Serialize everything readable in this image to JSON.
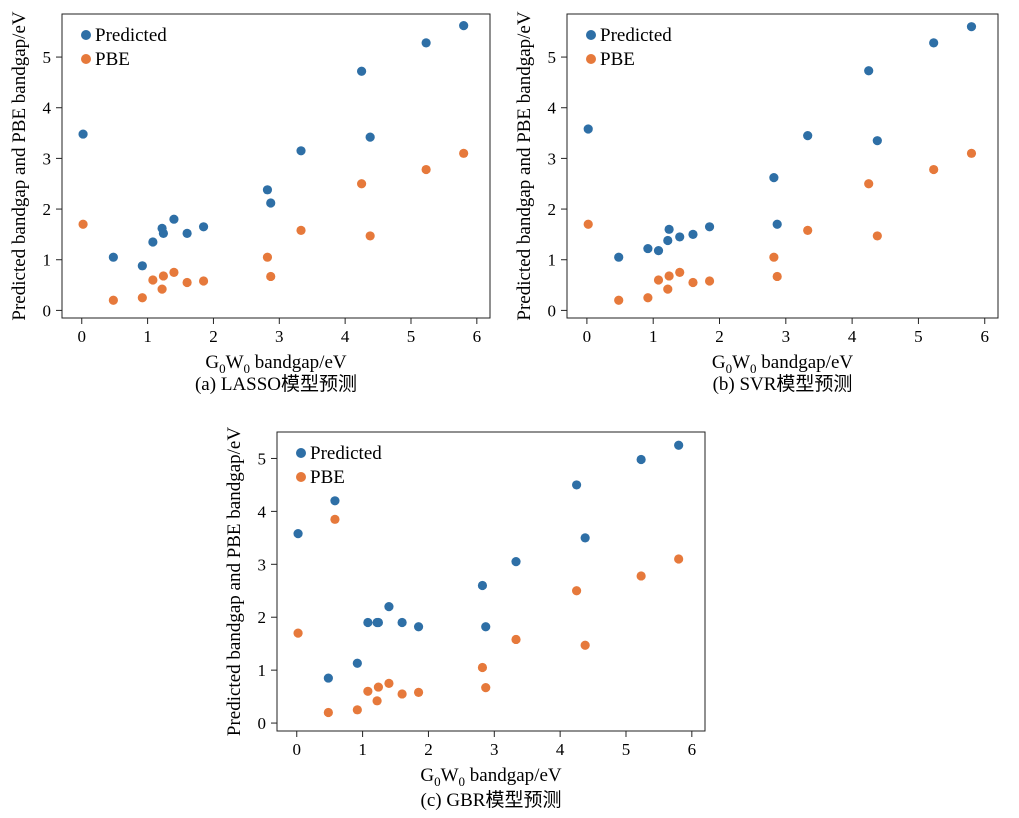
{
  "chart_data": [
    {
      "type": "scatter",
      "caption": "(a) LASSO模型预测",
      "xlabel_main": "G",
      "xlabel_sub1": "0",
      "xlabel_mid": "W",
      "xlabel_sub2": "0",
      "xlabel_tail": " bandgap/eV",
      "ylabel": "Predicted bandgap and PBE bandgap/eV",
      "xlim": [
        -0.3,
        6.2
      ],
      "ylim": [
        -0.15,
        5.85
      ],
      "xticks": [
        0,
        1,
        2,
        3,
        4,
        5,
        6
      ],
      "yticks": [
        0,
        1,
        2,
        3,
        4,
        5
      ],
      "legend": "top-left",
      "series": [
        {
          "name": "Predicted",
          "color": "#2e6fa6",
          "x": [
            0.02,
            0.48,
            0.92,
            1.08,
            1.22,
            1.24,
            1.4,
            1.6,
            1.85,
            2.82,
            2.87,
            3.33,
            4.25,
            4.38,
            5.23,
            5.8
          ],
          "y": [
            3.48,
            1.05,
            0.88,
            1.35,
            1.62,
            1.52,
            1.8,
            1.52,
            1.65,
            2.38,
            2.12,
            3.15,
            4.72,
            3.42,
            5.28,
            5.62
          ]
        },
        {
          "name": "PBE",
          "color": "#e6793b",
          "x": [
            0.02,
            0.48,
            0.92,
            1.08,
            1.22,
            1.24,
            1.4,
            1.6,
            1.85,
            2.82,
            2.87,
            3.33,
            4.25,
            4.38,
            5.23,
            5.8
          ],
          "y": [
            1.7,
            0.2,
            0.25,
            0.6,
            0.42,
            0.68,
            0.75,
            0.55,
            0.58,
            1.05,
            0.67,
            1.58,
            2.5,
            1.47,
            2.78,
            3.1
          ]
        }
      ]
    },
    {
      "type": "scatter",
      "caption": "(b) SVR模型预测",
      "xlabel_main": "G",
      "xlabel_sub1": "0",
      "xlabel_mid": "W",
      "xlabel_sub2": "0",
      "xlabel_tail": " bandgap/eV",
      "ylabel": "Predicted bandgap and PBE bandgap/eV",
      "xlim": [
        -0.3,
        6.2
      ],
      "ylim": [
        -0.15,
        5.85
      ],
      "xticks": [
        0,
        1,
        2,
        3,
        4,
        5,
        6
      ],
      "yticks": [
        0,
        1,
        2,
        3,
        4,
        5
      ],
      "legend": "top-left",
      "series": [
        {
          "name": "Predicted",
          "color": "#2e6fa6",
          "x": [
            0.02,
            0.48,
            0.92,
            1.08,
            1.22,
            1.24,
            1.4,
            1.6,
            1.85,
            2.82,
            2.87,
            3.33,
            4.25,
            4.38,
            5.23,
            5.8
          ],
          "y": [
            3.58,
            1.05,
            1.22,
            1.18,
            1.38,
            1.6,
            1.45,
            1.5,
            1.65,
            2.62,
            1.7,
            3.45,
            4.73,
            3.35,
            5.28,
            5.6
          ]
        },
        {
          "name": "PBE",
          "color": "#e6793b",
          "x": [
            0.02,
            0.48,
            0.92,
            1.08,
            1.22,
            1.24,
            1.4,
            1.6,
            1.85,
            2.82,
            2.87,
            3.33,
            4.25,
            4.38,
            5.23,
            5.8
          ],
          "y": [
            1.7,
            0.2,
            0.25,
            0.6,
            0.42,
            0.68,
            0.75,
            0.55,
            0.58,
            1.05,
            0.67,
            1.58,
            2.5,
            1.47,
            2.78,
            3.1
          ]
        }
      ]
    },
    {
      "type": "scatter",
      "caption": "(c) GBR模型预测",
      "xlabel_main": "G",
      "xlabel_sub1": "0",
      "xlabel_mid": "W",
      "xlabel_sub2": "0",
      "xlabel_tail": " bandgap/eV",
      "ylabel": "Predicted bandgap and PBE bandgap/eV",
      "xlim": [
        -0.3,
        6.2
      ],
      "ylim": [
        -0.15,
        5.5
      ],
      "xticks": [
        0,
        1,
        2,
        3,
        4,
        5,
        6
      ],
      "yticks": [
        0,
        1,
        2,
        3,
        4,
        5
      ],
      "legend": "top-left",
      "series": [
        {
          "name": "Predicted",
          "color": "#2e6fa6",
          "x": [
            0.02,
            0.48,
            0.58,
            0.92,
            1.08,
            1.22,
            1.24,
            1.4,
            1.6,
            1.85,
            2.82,
            2.87,
            3.33,
            4.25,
            4.38,
            5.23,
            5.8
          ],
          "y": [
            3.58,
            0.85,
            4.2,
            1.13,
            1.9,
            1.9,
            1.9,
            2.2,
            1.9,
            1.82,
            2.6,
            1.82,
            3.05,
            4.5,
            3.5,
            4.98,
            5.25
          ]
        },
        {
          "name": "PBE",
          "color": "#e6793b",
          "x": [
            0.02,
            0.48,
            0.58,
            0.92,
            1.08,
            1.22,
            1.24,
            1.4,
            1.6,
            1.85,
            2.82,
            2.87,
            3.33,
            4.25,
            4.38,
            5.23,
            5.8
          ],
          "y": [
            1.7,
            0.2,
            3.85,
            0.25,
            0.6,
            0.42,
            0.68,
            0.75,
            0.55,
            0.58,
            1.05,
            0.67,
            1.58,
            2.5,
            1.47,
            2.78,
            3.1
          ]
        }
      ]
    }
  ]
}
